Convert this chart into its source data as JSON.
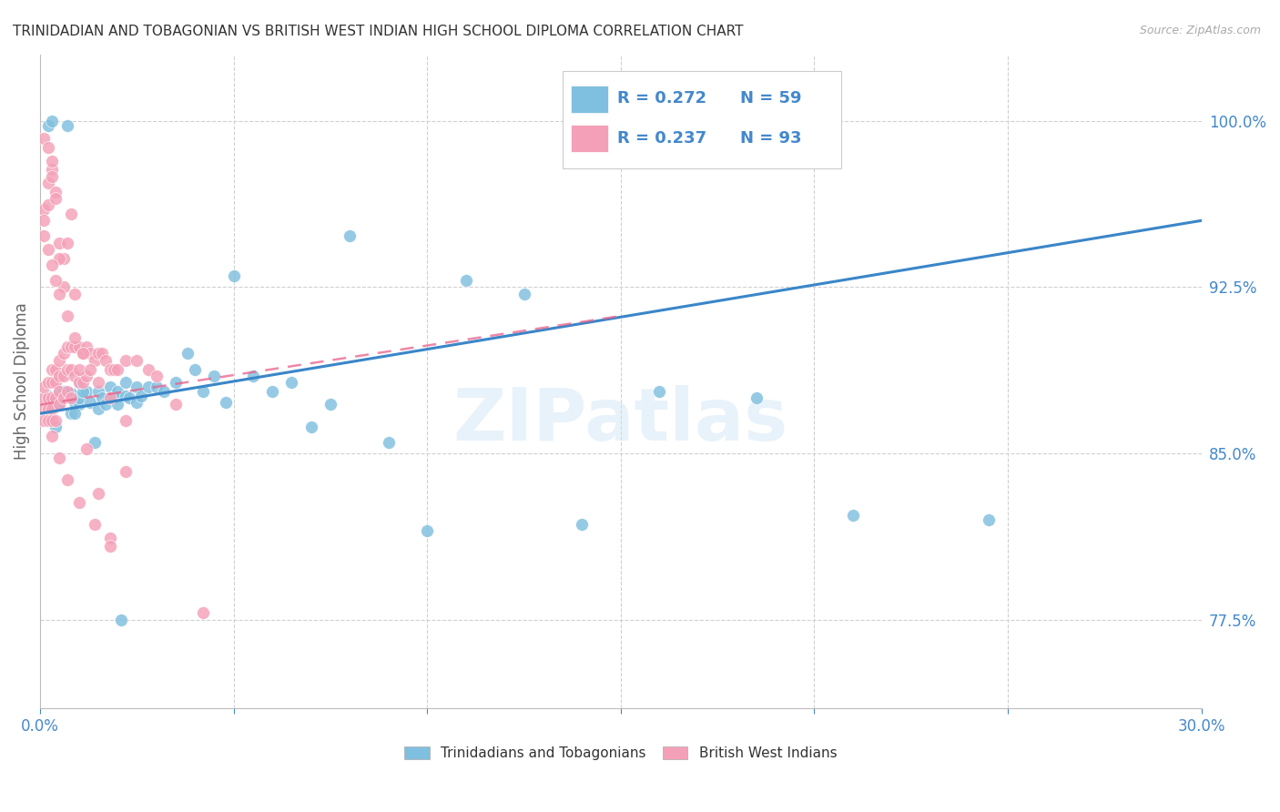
{
  "title": "TRINIDADIAN AND TOBAGONIAN VS BRITISH WEST INDIAN HIGH SCHOOL DIPLOMA CORRELATION CHART",
  "source": "Source: ZipAtlas.com",
  "ylabel": "High School Diploma",
  "ylabel_right_ticks": [
    "77.5%",
    "85.0%",
    "92.5%",
    "100.0%"
  ],
  "ylabel_right_vals": [
    0.775,
    0.85,
    0.925,
    1.0
  ],
  "xlim": [
    0.0,
    0.3
  ],
  "ylim": [
    0.735,
    1.03
  ],
  "legend1_label": "Trinidadians and Tobagonians",
  "legend2_label": "British West Indians",
  "watermark": "ZIPatlas",
  "blue_color": "#7fbfdf",
  "pink_color": "#f4a0b8",
  "blue_line_color": "#3a86c8",
  "pink_line_color": "#e8608a",
  "axis_label_color": "#4488cc",
  "blue_scatter_x": [
    0.002,
    0.005,
    0.005,
    0.008,
    0.008,
    0.009,
    0.01,
    0.01,
    0.01,
    0.012,
    0.013,
    0.015,
    0.015,
    0.016,
    0.017,
    0.018,
    0.019,
    0.02,
    0.02,
    0.022,
    0.022,
    0.023,
    0.025,
    0.025,
    0.026,
    0.028,
    0.03,
    0.032,
    0.035,
    0.038,
    0.04,
    0.042,
    0.045,
    0.048,
    0.05,
    0.055,
    0.06,
    0.065,
    0.07,
    0.075,
    0.08,
    0.09,
    0.1,
    0.11,
    0.125,
    0.14,
    0.16,
    0.185,
    0.21,
    0.245,
    0.002,
    0.003,
    0.007,
    0.009,
    0.004,
    0.006,
    0.011,
    0.014,
    0.021
  ],
  "blue_scatter_y": [
    0.876,
    0.878,
    0.872,
    0.877,
    0.868,
    0.873,
    0.872,
    0.882,
    0.875,
    0.878,
    0.873,
    0.878,
    0.87,
    0.875,
    0.872,
    0.88,
    0.875,
    0.872,
    0.878,
    0.876,
    0.882,
    0.875,
    0.873,
    0.88,
    0.876,
    0.88,
    0.88,
    0.878,
    0.882,
    0.895,
    0.888,
    0.878,
    0.885,
    0.873,
    0.93,
    0.885,
    0.878,
    0.882,
    0.862,
    0.872,
    0.948,
    0.855,
    0.815,
    0.928,
    0.922,
    0.818,
    0.878,
    0.875,
    0.822,
    0.82,
    0.998,
    1.0,
    0.998,
    0.868,
    0.862,
    0.878,
    0.878,
    0.855,
    0.775
  ],
  "pink_scatter_x": [
    0.001,
    0.001,
    0.001,
    0.001,
    0.002,
    0.002,
    0.002,
    0.002,
    0.003,
    0.003,
    0.003,
    0.003,
    0.003,
    0.004,
    0.004,
    0.004,
    0.004,
    0.005,
    0.005,
    0.005,
    0.005,
    0.006,
    0.006,
    0.006,
    0.007,
    0.007,
    0.007,
    0.008,
    0.008,
    0.008,
    0.009,
    0.009,
    0.01,
    0.01,
    0.011,
    0.011,
    0.012,
    0.012,
    0.013,
    0.014,
    0.015,
    0.016,
    0.017,
    0.018,
    0.019,
    0.02,
    0.022,
    0.025,
    0.028,
    0.03,
    0.001,
    0.002,
    0.003,
    0.004,
    0.005,
    0.006,
    0.001,
    0.002,
    0.003,
    0.004,
    0.005,
    0.006,
    0.007,
    0.008,
    0.009,
    0.01,
    0.012,
    0.015,
    0.018,
    0.022,
    0.001,
    0.002,
    0.003,
    0.001,
    0.002,
    0.003,
    0.004,
    0.005,
    0.007,
    0.009,
    0.011,
    0.013,
    0.015,
    0.018,
    0.022,
    0.003,
    0.005,
    0.007,
    0.01,
    0.014,
    0.018,
    0.035,
    0.042
  ],
  "pink_scatter_y": [
    0.875,
    0.88,
    0.87,
    0.865,
    0.882,
    0.875,
    0.87,
    0.865,
    0.888,
    0.882,
    0.875,
    0.87,
    0.865,
    0.888,
    0.882,
    0.875,
    0.865,
    0.892,
    0.885,
    0.878,
    0.872,
    0.895,
    0.885,
    0.875,
    0.898,
    0.888,
    0.878,
    0.898,
    0.888,
    0.875,
    0.898,
    0.885,
    0.898,
    0.882,
    0.895,
    0.882,
    0.898,
    0.885,
    0.895,
    0.892,
    0.895,
    0.895,
    0.892,
    0.888,
    0.888,
    0.888,
    0.892,
    0.892,
    0.888,
    0.885,
    0.96,
    0.972,
    0.978,
    0.968,
    0.945,
    0.938,
    0.955,
    0.962,
    0.975,
    0.965,
    0.938,
    0.925,
    0.945,
    0.958,
    0.922,
    0.888,
    0.852,
    0.832,
    0.812,
    0.842,
    0.992,
    0.988,
    0.982,
    0.948,
    0.942,
    0.935,
    0.928,
    0.922,
    0.912,
    0.902,
    0.895,
    0.888,
    0.882,
    0.875,
    0.865,
    0.858,
    0.848,
    0.838,
    0.828,
    0.818,
    0.808,
    0.872,
    0.778
  ],
  "blue_trend_x": [
    0.0,
    0.3
  ],
  "blue_trend_y": [
    0.868,
    0.955
  ],
  "pink_trend_x": [
    0.0,
    0.15
  ],
  "pink_trend_y": [
    0.872,
    0.912
  ]
}
